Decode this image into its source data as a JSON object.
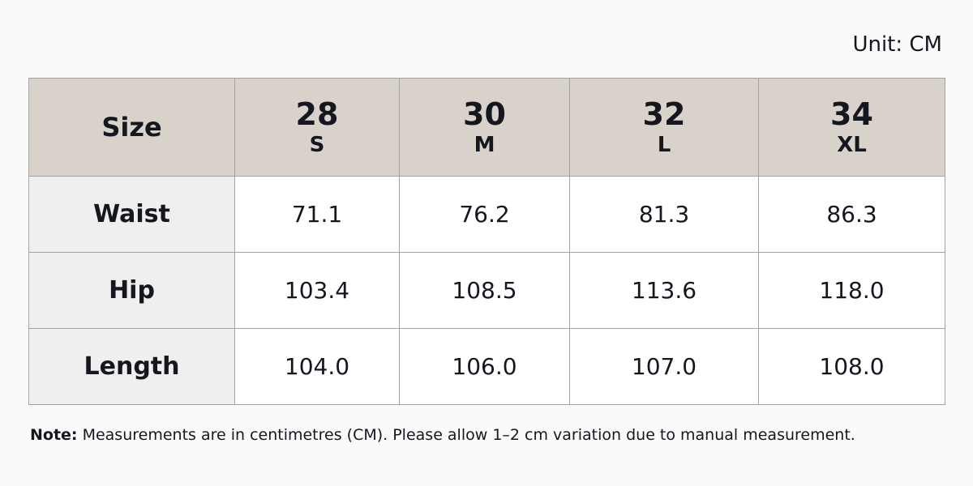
{
  "unit": "Unit: CM",
  "table": {
    "corner": "Size",
    "columns": [
      {
        "number": "28",
        "letter": "S"
      },
      {
        "number": "30",
        "letter": "M"
      },
      {
        "number": "32",
        "letter": "L"
      },
      {
        "number": "34",
        "letter": "XL"
      }
    ],
    "rows": [
      {
        "label": "Waist",
        "values": [
          "71.1",
          "76.2",
          "81.3",
          "86.3"
        ]
      },
      {
        "label": "Hip",
        "values": [
          "103.4",
          "108.5",
          "113.6",
          "118.0"
        ]
      },
      {
        "label": "Length",
        "values": [
          "104.0",
          "106.0",
          "107.0",
          "108.0"
        ]
      }
    ]
  },
  "note": {
    "label": "Note:",
    "text": "Measurements are in centimetres (CM). Please allow 1–2 cm variation due to manual measurement."
  }
}
